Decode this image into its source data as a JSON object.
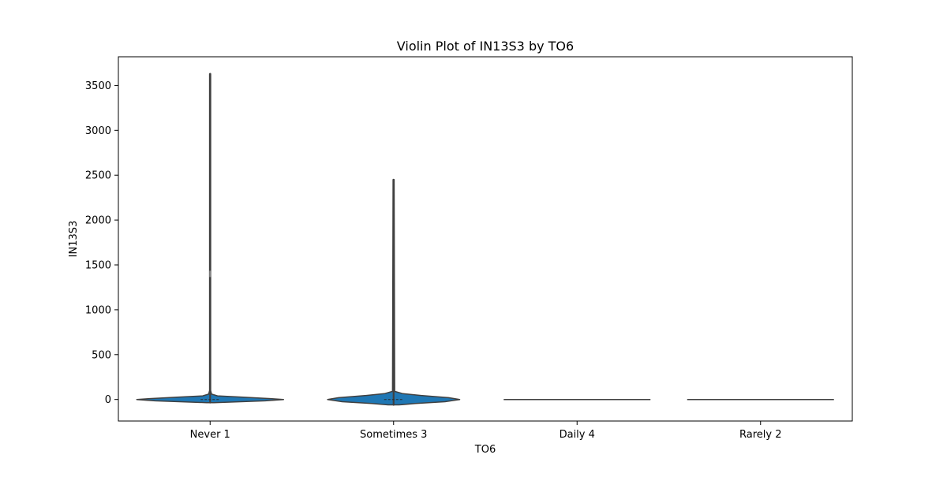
{
  "chart_data": {
    "type": "violin",
    "title": "Violin Plot of IN13S3 by TO6",
    "xlabel": "TO6",
    "ylabel": "IN13S3",
    "categories": [
      "Never 1",
      "Sometimes 3",
      "Daily 4",
      "Rarely 2"
    ],
    "ylim": [
      -240,
      3820
    ],
    "yticks": [
      0,
      500,
      1000,
      1500,
      2000,
      2500,
      3000,
      3500
    ],
    "grid": false,
    "legend": "none",
    "violin_color": "#1f77b4",
    "edge_color": "#404040",
    "violins": [
      {
        "category": "Never 1",
        "min": -35,
        "max": 3630,
        "median": 0,
        "outlier_mark": 1400,
        "profile": [
          {
            "y": -35,
            "half_width": 0.02
          },
          {
            "y": -15,
            "half_width": 0.3
          },
          {
            "y": 0,
            "half_width": 0.4
          },
          {
            "y": 10,
            "half_width": 0.33
          },
          {
            "y": 25,
            "half_width": 0.18
          },
          {
            "y": 40,
            "half_width": 0.04
          },
          {
            "y": 60,
            "half_width": 0.008
          },
          {
            "y": 100,
            "half_width": 0.003
          },
          {
            "y": 3630,
            "half_width": 0.003
          }
        ]
      },
      {
        "category": "Sometimes 3",
        "min": -60,
        "max": 2450,
        "median": 0,
        "profile": [
          {
            "y": -60,
            "half_width": 0.03
          },
          {
            "y": -45,
            "half_width": 0.12
          },
          {
            "y": -25,
            "half_width": 0.28
          },
          {
            "y": 0,
            "half_width": 0.36
          },
          {
            "y": 20,
            "half_width": 0.3
          },
          {
            "y": 45,
            "half_width": 0.15
          },
          {
            "y": 65,
            "half_width": 0.05
          },
          {
            "y": 90,
            "half_width": 0.006
          },
          {
            "y": 2450,
            "half_width": 0.003
          }
        ]
      },
      {
        "category": "Daily 4",
        "min": 0,
        "max": 0,
        "median": 0,
        "profile": [
          {
            "y": 0,
            "half_width": 0.4
          }
        ]
      },
      {
        "category": "Rarely 2",
        "min": 0,
        "max": 0,
        "median": 0,
        "profile": [
          {
            "y": 0,
            "half_width": 0.4
          }
        ]
      }
    ]
  }
}
